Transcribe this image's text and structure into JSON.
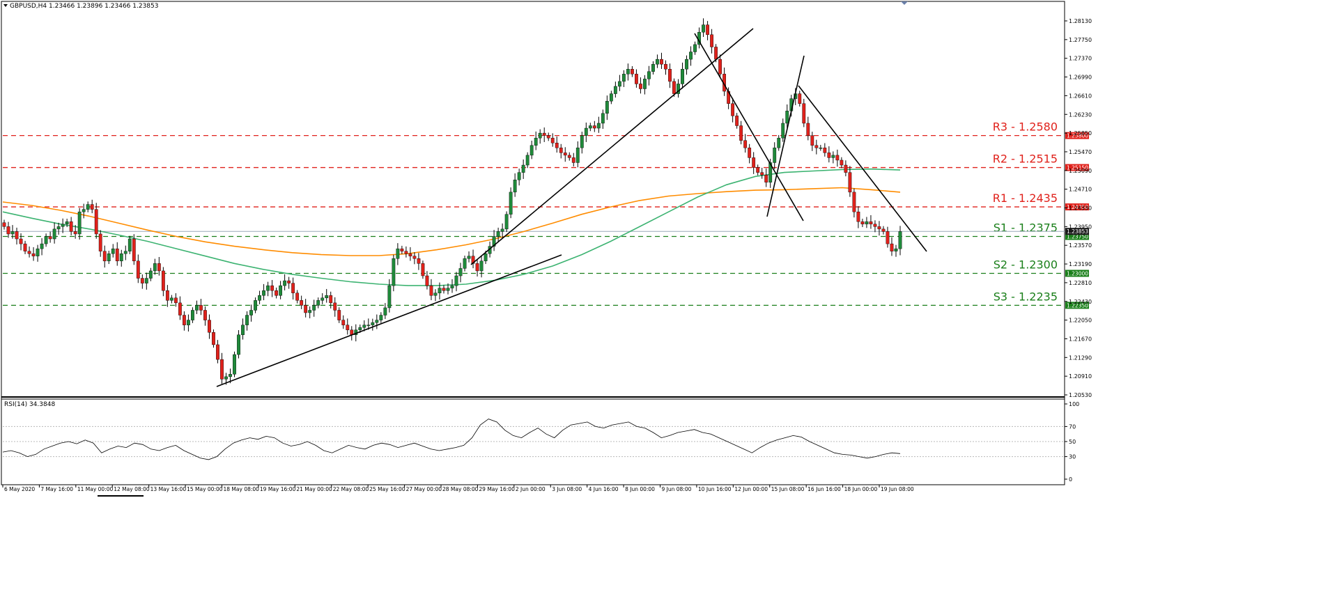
{
  "colors": {
    "bull": "#1f8a3a",
    "bear": "#e0211b",
    "wick": "#000000",
    "ma_green": "#3cb371",
    "ma_orange": "#ff8c00",
    "resistance": "#e0211b",
    "support": "#1a7f1a",
    "trendline": "#000000",
    "rsi_line": "#000000"
  },
  "header": {
    "title": "GBPUSD,H4  1.23466 1.23896 1.23466 1.23853",
    "rsi_title": "RSI(14) 34.3848"
  },
  "chart_data": {
    "type": "candlestick",
    "symbol": "GBPUSD",
    "timeframe": "H4",
    "ylim": [
      1.2053,
      1.2813
    ],
    "yticks": [
      "1.28130",
      "1.27750",
      "1.27370",
      "1.26990",
      "1.26610",
      "1.26230",
      "1.25850",
      "1.25470",
      "1.25090",
      "1.24710",
      "1.24330",
      "1.23950",
      "1.23570",
      "1.23190",
      "1.22810",
      "1.22430",
      "1.22050",
      "1.21670",
      "1.21290",
      "1.20910",
      "1.20530"
    ],
    "xticks": [
      "6 May 2020",
      "7 May 16:00",
      "11 May 00:00",
      "12 May 08:00",
      "13 May 16:00",
      "15 May 00:00",
      "18 May 08:00",
      "19 May 16:00",
      "21 May 00:00",
      "22 May 08:00",
      "25 May 16:00",
      "27 May 00:00",
      "28 May 08:00",
      "29 May 16:00",
      "2 Jun 00:00",
      "3 Jun 08:00",
      "4 Jun 16:00",
      "8 Jun 00:00",
      "9 Jun 08:00",
      "10 Jun 16:00",
      "12 Jun 00:00",
      "15 Jun 08:00",
      "16 Jun 16:00",
      "18 Jun 00:00",
      "19 Jun 08:00"
    ],
    "current_price": "1.23853",
    "levels": [
      {
        "name": "R3",
        "value": 1.258,
        "label": "R3 - 1.2580",
        "tag": "1.25800",
        "kind": "resistance"
      },
      {
        "name": "R2",
        "value": 1.2515,
        "label": "R2 - 1.2515",
        "tag": "1.25150",
        "kind": "resistance"
      },
      {
        "name": "R1",
        "value": 1.2435,
        "label": "R1 - 1.2435",
        "tag": "1.24350",
        "kind": "resistance"
      },
      {
        "name": "S1",
        "value": 1.2375,
        "label": "S1 - 1.2375",
        "tag": "1.23750",
        "kind": "support"
      },
      {
        "name": "S2",
        "value": 1.23,
        "label": "S2 - 1.2300",
        "tag": "1.23000",
        "kind": "support"
      },
      {
        "name": "S3",
        "value": 1.2235,
        "label": "S3 - 1.2235",
        "tag": "1.22350",
        "kind": "support"
      }
    ],
    "series_close": [
      1.2395,
      1.238,
      1.2385,
      1.237,
      1.236,
      1.2345,
      1.234,
      1.2335,
      1.235,
      1.236,
      1.2375,
      1.237,
      1.239,
      1.2395,
      1.24,
      1.2405,
      1.2385,
      1.238,
      1.2425,
      1.243,
      1.244,
      1.243,
      1.238,
      1.2345,
      1.2325,
      1.234,
      1.235,
      1.2325,
      1.234,
      1.2345,
      1.237,
      1.2325,
      1.229,
      1.228,
      1.229,
      1.2305,
      1.232,
      1.2305,
      1.2265,
      1.2245,
      1.225,
      1.224,
      1.2215,
      1.2195,
      1.2205,
      1.2225,
      1.2235,
      1.2225,
      1.2205,
      1.218,
      1.2155,
      1.2125,
      1.2085,
      1.209,
      1.2095,
      1.2135,
      1.2175,
      1.2195,
      1.2215,
      1.2225,
      1.2245,
      1.2255,
      1.2265,
      1.2275,
      1.2265,
      1.2255,
      1.2275,
      1.2285,
      1.228,
      1.226,
      1.2245,
      1.2235,
      1.222,
      1.2225,
      1.2235,
      1.2245,
      1.225,
      1.2255,
      1.224,
      1.2225,
      1.2205,
      1.2195,
      1.2185,
      1.2175,
      1.2185,
      1.219,
      1.2195,
      1.2195,
      1.22,
      1.2205,
      1.2215,
      1.223,
      1.2275,
      1.233,
      1.235,
      1.2345,
      1.234,
      1.2335,
      1.233,
      1.232,
      1.2295,
      1.2275,
      1.2255,
      1.226,
      1.227,
      1.2265,
      1.227,
      1.2275,
      1.2295,
      1.231,
      1.233,
      1.2335,
      1.232,
      1.2305,
      1.2325,
      1.234,
      1.2355,
      1.2375,
      1.2385,
      1.239,
      1.242,
      1.2465,
      1.249,
      1.2505,
      1.252,
      1.254,
      1.256,
      1.2575,
      1.2585,
      1.258,
      1.2575,
      1.2565,
      1.2555,
      1.2545,
      1.254,
      1.2535,
      1.2525,
      1.2555,
      1.258,
      1.2595,
      1.26,
      1.2595,
      1.2605,
      1.2625,
      1.265,
      1.2665,
      1.268,
      1.269,
      1.2705,
      1.2715,
      1.2705,
      1.2685,
      1.2675,
      1.2695,
      1.271,
      1.2725,
      1.2735,
      1.2725,
      1.2715,
      1.269,
      1.2665,
      1.2685,
      1.2715,
      1.2735,
      1.275,
      1.2765,
      1.279,
      1.2805,
      1.2785,
      1.276,
      1.2735,
      1.2705,
      1.267,
      1.2645,
      1.262,
      1.26,
      1.257,
      1.2555,
      1.2535,
      1.2515,
      1.2505,
      1.25,
      1.2485,
      1.2525,
      1.2555,
      1.2575,
      1.2605,
      1.263,
      1.2655,
      1.2665,
      1.2645,
      1.2605,
      1.258,
      1.256,
      1.2555,
      1.2555,
      1.2545,
      1.2535,
      1.254,
      1.253,
      1.252,
      1.2505,
      1.2465,
      1.2425,
      1.2405,
      1.24,
      1.2405,
      1.24,
      1.2395,
      1.239,
      1.2385,
      1.236,
      1.2345,
      1.235,
      1.2385
    ],
    "ma_green": [
      1.2425,
      1.2412,
      1.24,
      1.239,
      1.2378,
      1.2365,
      1.235,
      1.2335,
      1.232,
      1.2308,
      1.2298,
      1.229,
      1.2283,
      1.2278,
      1.2275,
      1.2275,
      1.2278,
      1.2286,
      1.2298,
      1.2315,
      1.2338,
      1.2365,
      1.2395,
      1.2425,
      1.2455,
      1.248,
      1.2497,
      1.2505,
      1.2508,
      1.2511,
      1.2512,
      1.251
    ],
    "ma_orange": [
      1.2445,
      1.2438,
      1.2428,
      1.2416,
      1.2402,
      1.2388,
      1.2375,
      1.2364,
      1.2355,
      1.2348,
      1.2342,
      1.2338,
      1.2336,
      1.2336,
      1.234,
      1.2348,
      1.2358,
      1.237,
      1.2385,
      1.2402,
      1.242,
      1.2435,
      1.2448,
      1.2457,
      1.2462,
      1.2466,
      1.2469,
      1.247,
      1.2472,
      1.2474,
      1.247,
      1.2465
    ],
    "rsi": {
      "ylim": [
        0,
        100
      ],
      "yticks": [
        "100",
        "70",
        "50",
        "30",
        "0"
      ],
      "levels": [
        70,
        50,
        30
      ],
      "values": [
        36,
        38,
        35,
        30,
        33,
        40,
        44,
        48,
        50,
        47,
        52,
        48,
        35,
        40,
        44,
        42,
        48,
        46,
        40,
        38,
        42,
        45,
        38,
        33,
        28,
        26,
        30,
        40,
        48,
        52,
        55,
        53,
        57,
        55,
        48,
        44,
        46,
        50,
        45,
        38,
        35,
        40,
        45,
        42,
        40,
        45,
        48,
        46,
        42,
        45,
        48,
        44,
        40,
        38,
        40,
        42,
        45,
        55,
        72,
        80,
        76,
        65,
        58,
        55,
        62,
        68,
        60,
        55,
        65,
        72,
        74,
        76,
        70,
        68,
        72,
        74,
        76,
        70,
        68,
        62,
        55,
        58,
        62,
        64,
        66,
        62,
        60,
        55,
        50,
        45,
        40,
        35,
        42,
        48,
        52,
        55,
        58,
        56,
        50,
        45,
        40,
        35,
        33,
        32,
        30,
        28,
        30,
        33,
        35,
        34
      ]
    }
  }
}
